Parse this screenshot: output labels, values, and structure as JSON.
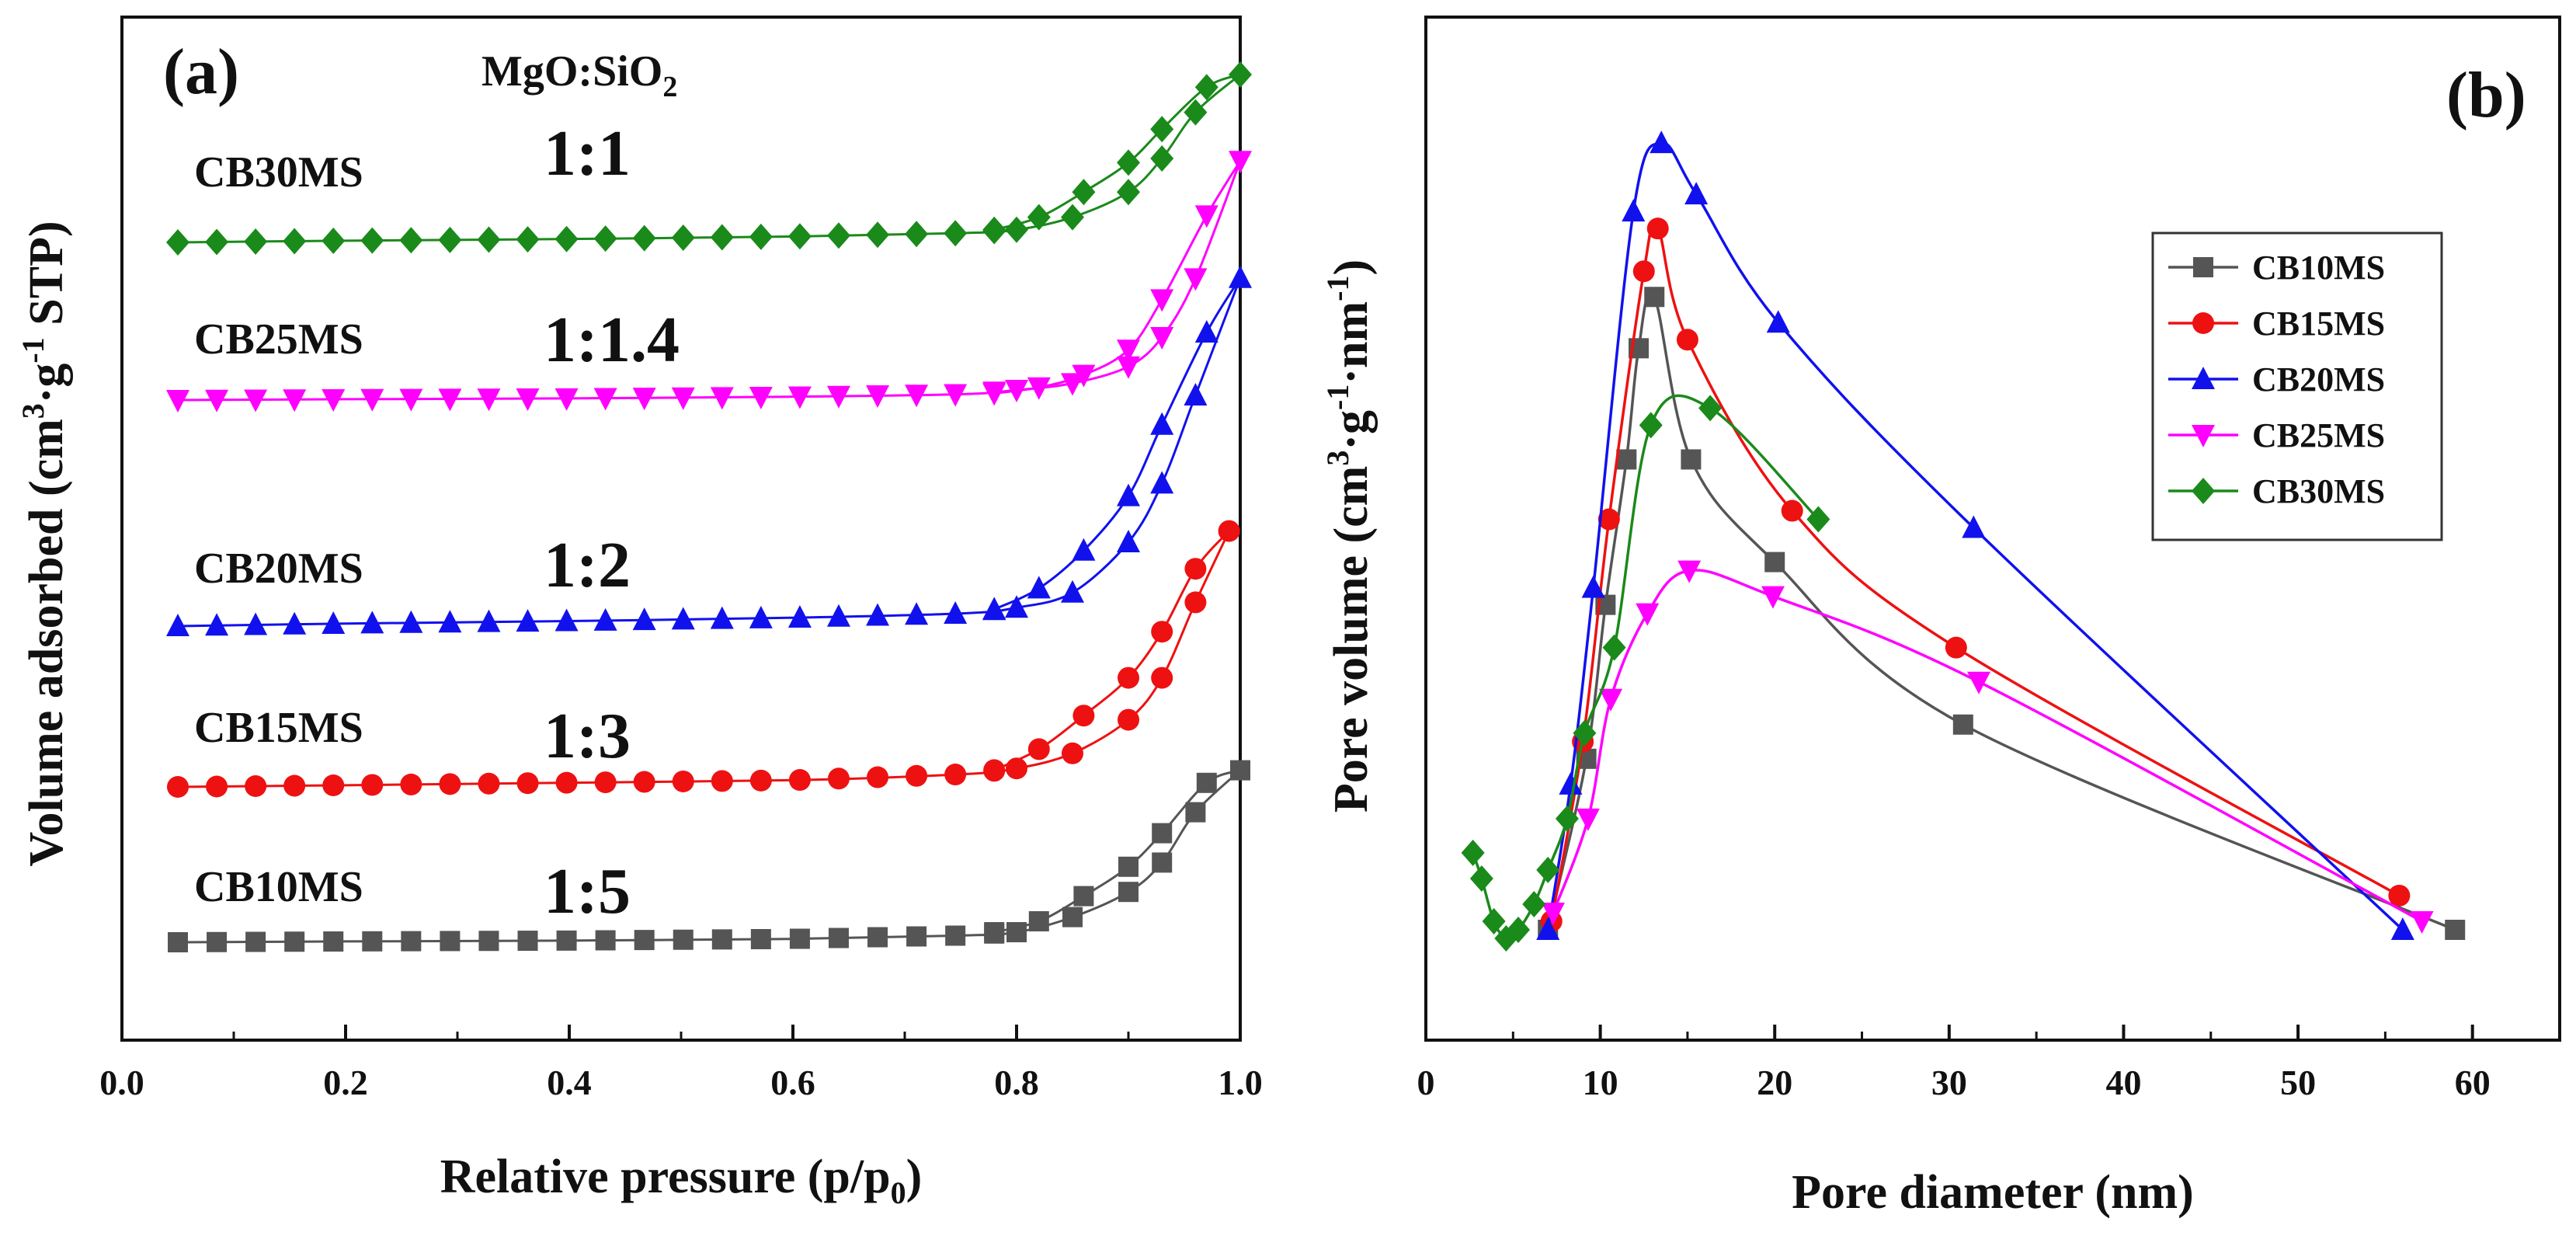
{
  "chart_data": [
    {
      "type": "line",
      "panel": "(a)",
      "xlabel": "Relative pressure (p/p0)",
      "ylabel": "Volume adsorbed (cm3·g-1 STP)",
      "xlim": [
        0.0,
        1.0
      ],
      "xticks": [
        "0.0",
        "0.2",
        "0.4",
        "0.6",
        "0.8",
        "1.0"
      ],
      "yticks_shown": false,
      "ratio_header": "MgO:SiO2",
      "series": [
        {
          "name": "CB10MS",
          "ratio": "1:5",
          "color": "#555555",
          "marker": "square",
          "adsorption": [
            [
              0.05,
              0.0
            ],
            [
              0.2,
              0.01
            ],
            [
              0.4,
              0.02
            ],
            [
              0.6,
              0.04
            ],
            [
              0.75,
              0.08
            ],
            [
              0.8,
              0.12
            ],
            [
              0.85,
              0.3
            ],
            [
              0.9,
              0.6
            ],
            [
              0.93,
              0.95
            ],
            [
              0.96,
              1.55
            ],
            [
              1.0,
              2.05
            ]
          ],
          "desorption": [
            [
              1.0,
              2.05
            ],
            [
              0.97,
              1.9
            ],
            [
              0.93,
              1.3
            ],
            [
              0.9,
              0.9
            ],
            [
              0.86,
              0.55
            ],
            [
              0.82,
              0.25
            ],
            [
              0.78,
              0.12
            ]
          ]
        },
        {
          "name": "CB15MS",
          "ratio": "1:3",
          "color": "#ee1111",
          "marker": "circle",
          "adsorption": [
            [
              0.05,
              0.0
            ],
            [
              0.2,
              0.02
            ],
            [
              0.4,
              0.05
            ],
            [
              0.6,
              0.08
            ],
            [
              0.75,
              0.15
            ],
            [
              0.8,
              0.22
            ],
            [
              0.85,
              0.4
            ],
            [
              0.9,
              0.8
            ],
            [
              0.93,
              1.3
            ],
            [
              0.96,
              2.2
            ],
            [
              0.99,
              3.05
            ]
          ],
          "desorption": [
            [
              0.99,
              3.05
            ],
            [
              0.96,
              2.6
            ],
            [
              0.93,
              1.85
            ],
            [
              0.9,
              1.3
            ],
            [
              0.86,
              0.85
            ],
            [
              0.82,
              0.45
            ],
            [
              0.78,
              0.2
            ]
          ]
        },
        {
          "name": "CB20MS",
          "ratio": "1:2",
          "color": "#1111ee",
          "marker": "triangle-up",
          "adsorption": [
            [
              0.05,
              0.0
            ],
            [
              0.2,
              0.03
            ],
            [
              0.4,
              0.06
            ],
            [
              0.6,
              0.1
            ],
            [
              0.75,
              0.15
            ],
            [
              0.8,
              0.22
            ],
            [
              0.85,
              0.4
            ],
            [
              0.9,
              1.0
            ],
            [
              0.93,
              1.7
            ],
            [
              0.96,
              2.75
            ],
            [
              1.0,
              4.15
            ]
          ],
          "desorption": [
            [
              1.0,
              4.15
            ],
            [
              0.97,
              3.5
            ],
            [
              0.93,
              2.4
            ],
            [
              0.9,
              1.55
            ],
            [
              0.86,
              0.9
            ],
            [
              0.82,
              0.45
            ],
            [
              0.78,
              0.2
            ]
          ]
        },
        {
          "name": "CB25MS",
          "ratio": "1:1.4",
          "color": "#ff00ff",
          "marker": "triangle-down",
          "adsorption": [
            [
              0.05,
              0.0
            ],
            [
              0.2,
              0.01
            ],
            [
              0.4,
              0.02
            ],
            [
              0.6,
              0.04
            ],
            [
              0.75,
              0.07
            ],
            [
              0.8,
              0.12
            ],
            [
              0.85,
              0.2
            ],
            [
              0.9,
              0.4
            ],
            [
              0.93,
              0.75
            ],
            [
              0.96,
              1.45
            ],
            [
              1.0,
              2.85
            ]
          ],
          "desorption": [
            [
              1.0,
              2.85
            ],
            [
              0.97,
              2.2
            ],
            [
              0.93,
              1.2
            ],
            [
              0.9,
              0.6
            ],
            [
              0.86,
              0.3
            ],
            [
              0.82,
              0.15
            ],
            [
              0.78,
              0.08
            ]
          ]
        },
        {
          "name": "CB30MS",
          "ratio": "1:1",
          "color": "#1a8a1a",
          "marker": "diamond",
          "adsorption": [
            [
              0.05,
              0.0
            ],
            [
              0.2,
              0.02
            ],
            [
              0.4,
              0.04
            ],
            [
              0.6,
              0.07
            ],
            [
              0.75,
              0.11
            ],
            [
              0.8,
              0.15
            ],
            [
              0.85,
              0.3
            ],
            [
              0.9,
              0.6
            ],
            [
              0.93,
              1.0
            ],
            [
              0.96,
              1.55
            ],
            [
              1.0,
              2.0
            ]
          ],
          "desorption": [
            [
              1.0,
              2.0
            ],
            [
              0.97,
              1.85
            ],
            [
              0.93,
              1.35
            ],
            [
              0.9,
              0.95
            ],
            [
              0.86,
              0.6
            ],
            [
              0.82,
              0.3
            ],
            [
              0.78,
              0.15
            ]
          ]
        }
      ]
    },
    {
      "type": "line",
      "panel": "(b)",
      "xlabel": "Pore diameter (nm)",
      "ylabel": "Pore volume (cm3·g-1·nm-1)",
      "xlim": [
        0,
        65
      ],
      "ylim": [
        0,
        1.0
      ],
      "xticks": [
        "0",
        "10",
        "20",
        "30",
        "40",
        "50",
        "60"
      ],
      "yticks_shown": false,
      "legend": "top-right",
      "series": [
        {
          "name": "CB10MS",
          "color": "#555555",
          "marker": "square",
          "x": [
            7.0,
            9.2,
            10.3,
            11.5,
            12.2,
            13.1,
            15.2,
            20.0,
            30.8,
            59.0
          ],
          "y": [
            0.0,
            0.2,
            0.38,
            0.55,
            0.68,
            0.74,
            0.55,
            0.43,
            0.24,
            0.0
          ]
        },
        {
          "name": "CB15MS",
          "color": "#ee1111",
          "marker": "circle",
          "x": [
            7.2,
            9.0,
            10.5,
            12.5,
            13.3,
            15.0,
            21.0,
            30.4,
            55.8
          ],
          "y": [
            0.01,
            0.22,
            0.48,
            0.77,
            0.82,
            0.69,
            0.49,
            0.33,
            0.04
          ]
        },
        {
          "name": "CB20MS",
          "color": "#1111ee",
          "marker": "triangle-up",
          "x": [
            7.0,
            8.3,
            9.6,
            11.9,
            13.5,
            15.5,
            20.2,
            31.4,
            56.0
          ],
          "y": [
            0.0,
            0.17,
            0.4,
            0.84,
            0.92,
            0.86,
            0.71,
            0.47,
            0.0
          ]
        },
        {
          "name": "CB25MS",
          "color": "#ff00ff",
          "marker": "triangle-down",
          "x": [
            7.3,
            9.3,
            10.6,
            12.7,
            15.1,
            19.9,
            31.7,
            57.1
          ],
          "y": [
            0.02,
            0.13,
            0.27,
            0.37,
            0.42,
            0.39,
            0.29,
            0.01
          ]
        },
        {
          "name": "CB30MS",
          "color": "#1a8a1a",
          "marker": "diamond",
          "x": [
            2.7,
            3.2,
            3.9,
            4.6,
            5.3,
            6.2,
            7.0,
            8.1,
            9.1,
            10.8,
            12.9,
            16.3,
            22.5
          ],
          "y": [
            0.09,
            0.06,
            0.01,
            -0.01,
            0.0,
            0.03,
            0.07,
            0.13,
            0.23,
            0.33,
            0.59,
            0.61,
            0.48
          ]
        }
      ]
    }
  ],
  "labels": {
    "panel_a": "(a)",
    "panel_b": "(b)",
    "ratio_header_main": "MgO:SiO",
    "ratio_header_sub": "2",
    "a_xlabel_main": "Relative pressure (p/p",
    "a_xlabel_sub": "0",
    "a_xlabel_end": ")",
    "a_ylabel_1": "Volume adsorbed (cm",
    "a_ylabel_sup1": "3",
    "a_ylabel_2": "·g",
    "a_ylabel_sup2": "-1",
    "a_ylabel_3": " STP)",
    "b_xlabel": "Pore diameter (nm)",
    "b_ylabel_1": "Pore volume (cm",
    "b_ylabel_sup1": "3",
    "b_ylabel_2": "·g",
    "b_ylabel_sup2": "-1",
    "b_ylabel_3": "·nm",
    "b_ylabel_sup3": "-1",
    "b_ylabel_4": ")"
  }
}
